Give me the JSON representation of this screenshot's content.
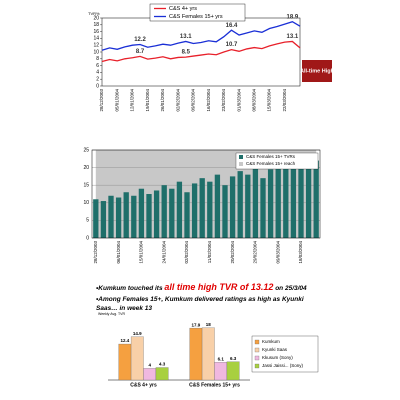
{
  "chart_data": [
    {
      "type": "line",
      "ylabel": "TVR%",
      "categories": [
        "28/12/2003",
        null,
        "05/01/2004",
        null,
        "12/01/2004",
        null,
        "19/01/2004",
        null,
        "26/01/2004",
        null,
        "02/02/2004",
        null,
        "09/02/2004",
        null,
        "16/02/2004",
        null,
        "23/02/2004",
        null,
        "01/03/2004",
        null,
        "08/03/2004",
        null,
        "15/03/2004",
        null,
        "22/03/2004",
        null,
        null
      ],
      "series": [
        {
          "name": "C&S 4+ yrs",
          "color": "#e8202a",
          "labeled": [
            5,
            11,
            17,
            25
          ],
          "values": [
            7.2,
            7.8,
            7.4,
            8.0,
            8.3,
            8.7,
            7.9,
            8.2,
            8.6,
            8.0,
            8.4,
            8.5,
            8.8,
            9.1,
            9.4,
            9.2,
            10.0,
            10.7,
            10.2,
            10.9,
            11.3,
            11.0,
            11.8,
            12.4,
            12.9,
            13.1,
            11.2
          ]
        },
        {
          "name": "C&S Females 15+ yrs",
          "color": "#1a2fd6",
          "labeled": [
            5,
            11,
            17,
            25
          ],
          "values": [
            10.5,
            11.2,
            10.8,
            11.5,
            12.0,
            12.2,
            11.4,
            11.8,
            12.3,
            12.0,
            12.6,
            13.1,
            12.5,
            12.8,
            13.3,
            13.0,
            14.5,
            16.4,
            15.0,
            15.6,
            16.2,
            15.8,
            16.9,
            17.5,
            18.2,
            18.9,
            17.6
          ]
        }
      ],
      "annotation": "All-time High",
      "ylim": [
        0,
        20
      ],
      "yticks": [
        0,
        2,
        4,
        6,
        8,
        10,
        12,
        14,
        16,
        18,
        20
      ]
    },
    {
      "type": "bar",
      "categories": [
        "28/12/2003",
        null,
        null,
        "06/01/2004",
        null,
        null,
        "15/01/2004",
        null,
        null,
        "24/01/2004",
        null,
        null,
        "02/02/2004",
        null,
        null,
        "11/02/2004",
        null,
        null,
        "20/02/2004",
        null,
        null,
        "29/02/2004",
        null,
        null,
        "09/03/2004",
        null,
        null,
        "18/03/2004",
        null,
        null
      ],
      "series": [
        {
          "name": "C&S Females 15+ TVRs",
          "color": "#1f6f6a",
          "style": "bar",
          "values": [
            11,
            10.5,
            12,
            11.5,
            13,
            12,
            14,
            12.5,
            13.5,
            15,
            14,
            16,
            13,
            15.5,
            17,
            16,
            18,
            15,
            17.5,
            19,
            18,
            20,
            17,
            19.5,
            21,
            20,
            22,
            21,
            23,
            22
          ]
        },
        {
          "name": "C&S Females 15+ reach",
          "color": "#c8c8c8",
          "style": "area",
          "values": [
            25,
            25,
            25,
            25,
            25,
            25,
            25,
            25,
            25,
            25,
            25,
            25,
            25,
            25,
            25,
            25,
            25,
            25,
            25,
            25,
            25,
            25,
            25,
            25,
            25,
            25,
            25,
            25,
            25,
            25
          ]
        }
      ],
      "ylim": [
        0,
        25
      ],
      "yticks": [
        0,
        5,
        10,
        15,
        20,
        25
      ],
      "grid": true
    },
    {
      "type": "grouped-bar",
      "ylabel": "Weekly Avg. TVR",
      "categories": [
        "C&S 4+ yrs",
        "C&S Females 15+ yrs"
      ],
      "series": [
        {
          "name": "Kumkum",
          "color": "#f5a040",
          "values": [
            12.4,
            17.9
          ]
        },
        {
          "name": "Kyunki Saas",
          "color": "#f8d0a8",
          "values": [
            14.9,
            18.0
          ]
        },
        {
          "name": "Kkusum (Sony)",
          "color": "#f0b8e0",
          "values": [
            4.0,
            6.1
          ]
        },
        {
          "name": "Jassi Jaissi... (Sony)",
          "color": "#a8d040",
          "values": [
            4.3,
            6.3
          ]
        }
      ],
      "ylim": [
        0,
        20
      ]
    }
  ],
  "notes": {
    "line1": [
      "•Kumkum touched its ",
      "all time high TVR of 13.12",
      " on 25/3/04"
    ],
    "line2": "•Among Females 15+, Kumkum delivered ratings as high as Kyunki Saas… in week 13"
  }
}
